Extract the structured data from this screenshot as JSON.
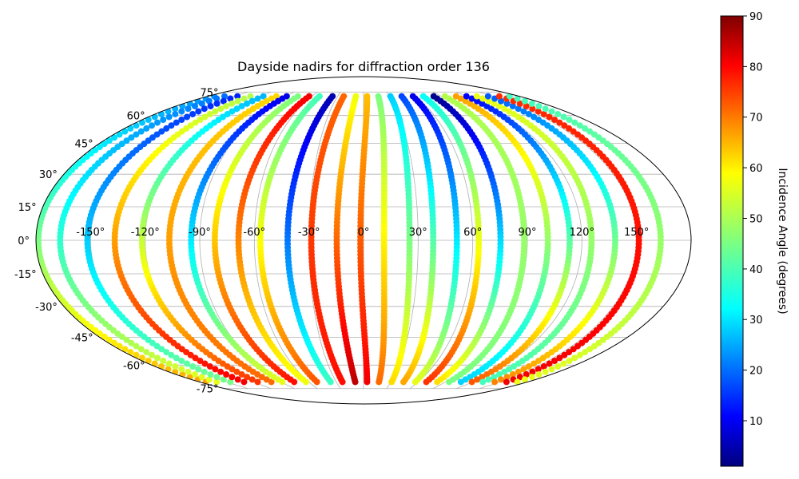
{
  "chart_data": {
    "type": "scatter",
    "projection": "mollweide",
    "title": "Dayside nadirs for diffraction order 136",
    "xlabel": "",
    "ylabel": "",
    "x_ticks": [
      "-150°",
      "-120°",
      "-90°",
      "-60°",
      "-30°",
      "0°",
      "30°",
      "60°",
      "90°",
      "120°",
      "150°"
    ],
    "y_ticks": [
      "75°",
      "60°",
      "45°",
      "30°",
      "15°",
      "0°",
      "-15°",
      "-30°",
      "-45°",
      "-60°",
      "-75°"
    ],
    "xlim": [
      -180,
      180
    ],
    "ylim": [
      -90,
      90
    ],
    "grid": true,
    "colorbar": {
      "label": "Incidence Angle (degrees)",
      "range": [
        1,
        90
      ],
      "ticks": [
        "10",
        "20",
        "30",
        "40",
        "50",
        "60",
        "70",
        "80",
        "90"
      ],
      "colormap": "jet"
    },
    "series": [
      {
        "lon0": -172,
        "amp": 14,
        "color_n": 25,
        "color_s": 65
      },
      {
        "lon0": -160,
        "amp": 14,
        "color_n": 22,
        "color_s": 55
      },
      {
        "lon0": -145,
        "amp": 14,
        "color_n": 15,
        "color_s": 45
      },
      {
        "lon0": -130,
        "amp": 14,
        "color_n": 50,
        "color_s": 80
      },
      {
        "lon0": -115,
        "amp": 14,
        "color_n": 28,
        "color_s": 75
      },
      {
        "lon0": -100,
        "amp": 14,
        "color_n": 60,
        "color_s": 70
      },
      {
        "lon0": -88,
        "amp": 14,
        "color_n": 10,
        "color_s": 55
      },
      {
        "lon0": -75,
        "amp": 14,
        "color_n": 45,
        "color_s": 78
      },
      {
        "lon0": -62,
        "amp": 14,
        "color_n": 80,
        "color_s": 55
      },
      {
        "lon0": -50,
        "amp": 14,
        "color_n": 40,
        "color_s": 72
      },
      {
        "lon0": -35,
        "amp": 14,
        "color_n": 5,
        "color_s": 40
      },
      {
        "lon0": -22,
        "amp": 14,
        "color_n": 70,
        "color_s": 78
      },
      {
        "lon0": -8,
        "amp": 14,
        "color_n": 55,
        "color_s": 85
      },
      {
        "lon0": 5,
        "amp": 14,
        "color_n": 62,
        "color_s": 80
      },
      {
        "lon0": 18,
        "amp": 14,
        "color_n": 45,
        "color_s": 70
      },
      {
        "lon0": 32,
        "amp": 14,
        "color_n": 30,
        "color_s": 60
      },
      {
        "lon0": 45,
        "amp": 14,
        "color_n": 18,
        "color_s": 65
      },
      {
        "lon0": 58,
        "amp": 14,
        "color_n": 10,
        "color_s": 55
      },
      {
        "lon0": 70,
        "amp": 14,
        "color_n": 35,
        "color_s": 75
      },
      {
        "lon0": 82,
        "amp": 14,
        "color_n": 2,
        "color_s": 60
      },
      {
        "lon0": 95,
        "amp": 14,
        "color_n": 50,
        "color_s": 45
      },
      {
        "lon0": 108,
        "amp": 14,
        "color_n": 65,
        "color_s": 30
      },
      {
        "lon0": 120,
        "amp": 14,
        "color_n": 12,
        "color_s": 72
      },
      {
        "lon0": 132,
        "amp": 14,
        "color_n": 55,
        "color_s": 40
      },
      {
        "lon0": 145,
        "amp": 14,
        "color_n": 20,
        "color_s": 68
      },
      {
        "lon0": 158,
        "amp": 14,
        "color_n": 75,
        "color_s": 80
      },
      {
        "lon0": 170,
        "amp": 14,
        "color_n": 40,
        "color_s": 55
      }
    ]
  }
}
